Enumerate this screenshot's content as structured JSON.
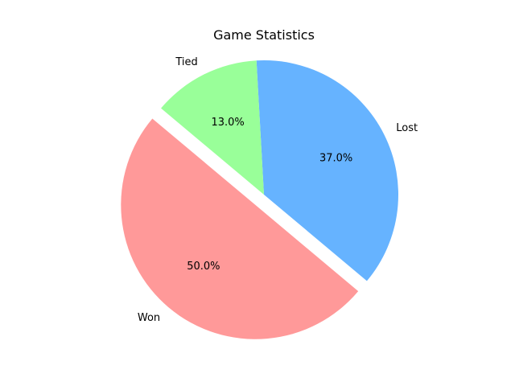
{
  "chart_data": {
    "type": "pie",
    "title": "Game Statistics",
    "slices": [
      {
        "label": "Won",
        "value": 50.0,
        "percent_label": "50.0%",
        "color": "#ff9999",
        "exploded": true
      },
      {
        "label": "Lost",
        "value": 37.0,
        "percent_label": "37.0%",
        "color": "#66b3ff",
        "exploded": false
      },
      {
        "label": "Tied",
        "value": 13.0,
        "percent_label": "13.0%",
        "color": "#99ff99",
        "exploded": false
      }
    ],
    "start_angle_deg": 140,
    "direction": "counterclockwise",
    "legend": "none"
  }
}
